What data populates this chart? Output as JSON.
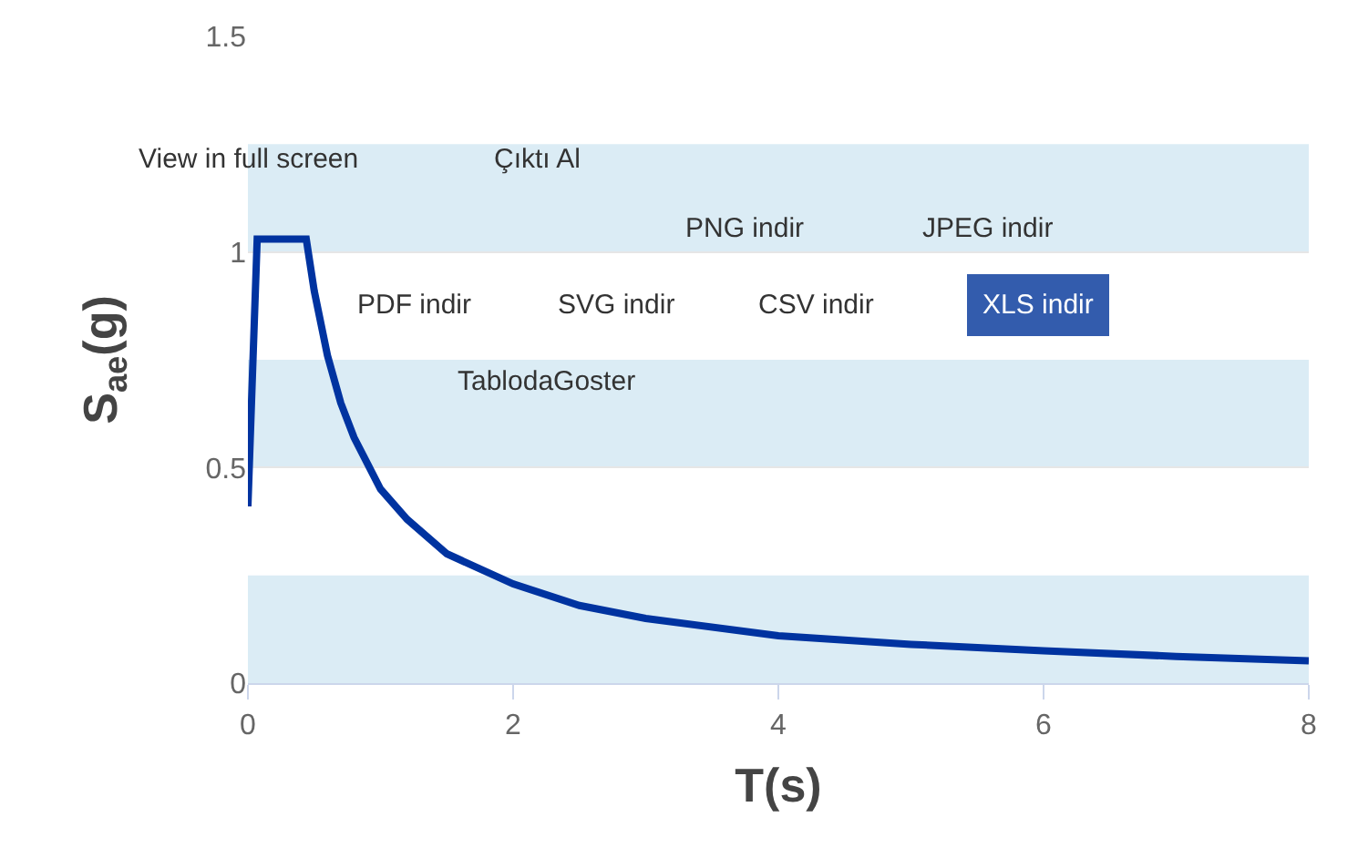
{
  "chart_data": {
    "type": "line",
    "xlabel": "T(s)",
    "ylabel": "S$_{ae}$(g)",
    "x": [
      0,
      0.07,
      0.44,
      0.5,
      0.6,
      0.7,
      0.8,
      1.0,
      1.2,
      1.5,
      2,
      2.5,
      3,
      4,
      5,
      6,
      7,
      8
    ],
    "series": [
      {
        "color": "#0033a0",
        "values": [
          0.41,
          1.03,
          1.03,
          0.91,
          0.76,
          0.65,
          0.57,
          0.45,
          0.38,
          0.3,
          0.23,
          0.18,
          0.15,
          0.11,
          0.09,
          0.075,
          0.062,
          0.052
        ]
      }
    ],
    "xlim": [
      0,
      8
    ],
    "xticks": [
      0,
      2,
      4,
      6,
      8
    ],
    "ylim": [
      0,
      1.5
    ],
    "yticks": [
      0,
      0.5,
      1,
      1.5
    ],
    "bands": [
      {
        "axis": "y",
        "from": 0,
        "to": 0.25,
        "color": "#dbecf5"
      },
      {
        "axis": "y",
        "from": 0.5,
        "to": 0.75,
        "color": "#dbecf5"
      },
      {
        "axis": "y",
        "from": 1,
        "to": 1.25,
        "color": "#dbecf5"
      }
    ],
    "grid": "y",
    "marker": "none",
    "line_style": "solid",
    "annotations": [
      "View in full screen",
      "Çıktı Al",
      "PNG indir",
      "JPEG indir",
      "PDF indir",
      "SVG indir",
      "CSV indir",
      "XLS indir",
      "TablodaGoster"
    ]
  }
}
